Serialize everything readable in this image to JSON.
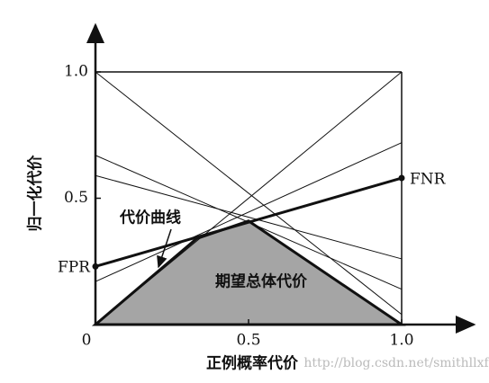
{
  "chart_data": {
    "type": "line",
    "xlabel": "正例概率代价",
    "ylabel": "归一化代价",
    "xlim": [
      0,
      1
    ],
    "ylim": [
      0,
      1
    ],
    "xticks": [
      0,
      0.5,
      {
        "value": 1,
        "label": "1.0"
      }
    ],
    "yticks": [
      0.5,
      {
        "value": 1,
        "label": "1.0"
      }
    ],
    "series": [
      {
        "x": [
          0,
          1
        ],
        "values": [
          1,
          0.04
        ],
        "color": "#111111"
      },
      {
        "x": [
          0,
          1
        ],
        "values": [
          0.67,
          0.14
        ],
        "color": "#111111"
      },
      {
        "x": [
          0,
          1
        ],
        "values": [
          0.59,
          0.26
        ],
        "color": "#111111"
      },
      {
        "x": [
          0,
          1
        ],
        "values": [
          0,
          1
        ],
        "color": "#111111"
      },
      {
        "x": [
          0,
          1
        ],
        "values": [
          0.17,
          0.72
        ],
        "color": "#111111"
      },
      {
        "x": [
          0,
          1
        ],
        "values": [
          0.23,
          0.58
        ],
        "color": "#111111",
        "bold": true
      }
    ],
    "area": {
      "x": [
        0,
        0.33,
        0.5,
        1
      ],
      "values": [
        0,
        0.34,
        0.41,
        0
      ],
      "color": "#a5a5a5"
    },
    "annotations": [
      "FPR",
      "FNR",
      "代价曲线",
      "期望总体代价"
    ],
    "watermark": "http://blog.csdn.net/smithllxf"
  }
}
